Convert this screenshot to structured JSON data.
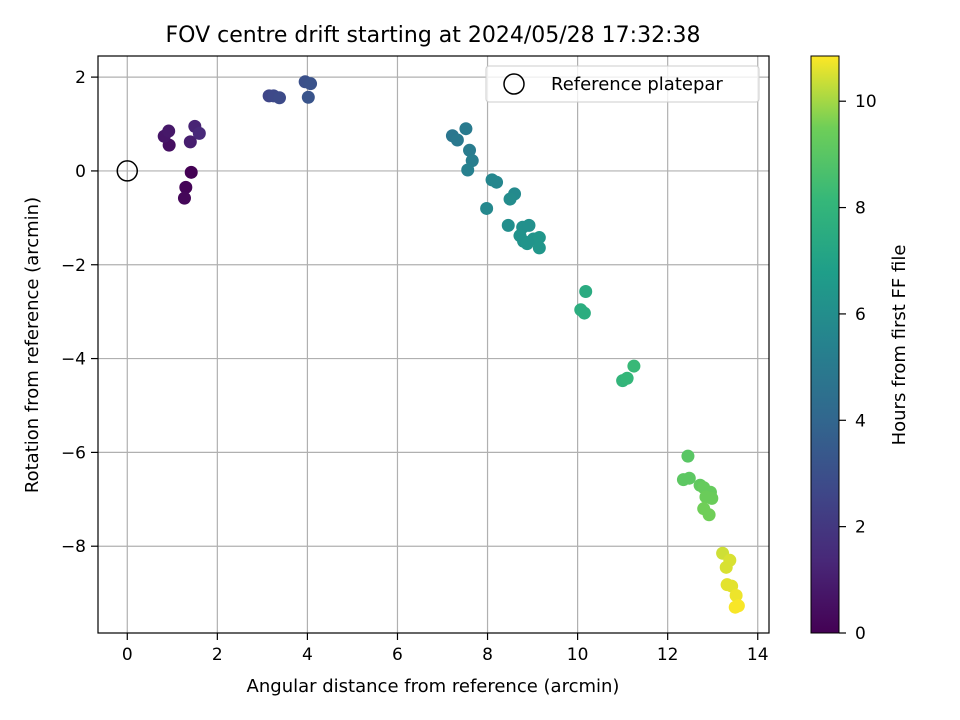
{
  "chart_data": {
    "type": "scatter",
    "title": "FOV centre drift starting at 2024/05/28 17:32:38",
    "xlabel": "Angular distance from reference (arcmin)",
    "ylabel": "Rotation from reference (arcmin)",
    "xlim": [
      -0.65,
      14.25
    ],
    "ylim": [
      -9.85,
      2.45
    ],
    "x_ticks": [
      0,
      2,
      4,
      6,
      8,
      10,
      12,
      14
    ],
    "y_ticks": [
      2,
      0,
      -2,
      -4,
      -6,
      -8
    ],
    "x_tick_labels": [
      "0",
      "2",
      "4",
      "6",
      "8",
      "10",
      "12",
      "14"
    ],
    "y_tick_labels": [
      "2",
      "0",
      "−2",
      "−4",
      "−6",
      "−8"
    ],
    "grid": true,
    "legend": {
      "placement": "top-right",
      "entries": [
        "Reference platepar"
      ]
    },
    "reference_point": {
      "x": 0,
      "y": 0,
      "label": "Reference platepar"
    },
    "colorbar": {
      "label": "Hours from first FF file",
      "range": [
        0,
        10.85
      ],
      "ticks": [
        0,
        2,
        4,
        6,
        8,
        10
      ],
      "tick_labels": [
        "0",
        "2",
        "4",
        "6",
        "8",
        "10"
      ],
      "colormap": "viridis"
    },
    "points": [
      {
        "x": 1.42,
        "y": -0.03,
        "c": 0.0
      },
      {
        "x": 1.3,
        "y": -0.35,
        "c": 0.1
      },
      {
        "x": 1.27,
        "y": -0.58,
        "c": 0.2
      },
      {
        "x": 0.93,
        "y": 0.55,
        "c": 0.5
      },
      {
        "x": 0.82,
        "y": 0.74,
        "c": 0.7
      },
      {
        "x": 0.92,
        "y": 0.85,
        "c": 0.8
      },
      {
        "x": 1.4,
        "y": 0.62,
        "c": 1.0
      },
      {
        "x": 1.5,
        "y": 0.95,
        "c": 1.2
      },
      {
        "x": 1.6,
        "y": 0.8,
        "c": 1.4
      },
      {
        "x": 3.15,
        "y": 1.6,
        "c": 2.6
      },
      {
        "x": 3.25,
        "y": 1.6,
        "c": 2.7
      },
      {
        "x": 3.38,
        "y": 1.56,
        "c": 2.8
      },
      {
        "x": 3.95,
        "y": 1.9,
        "c": 3.0
      },
      {
        "x": 4.07,
        "y": 1.86,
        "c": 3.1
      },
      {
        "x": 4.02,
        "y": 1.57,
        "c": 3.2
      },
      {
        "x": 7.22,
        "y": 0.75,
        "c": 4.8
      },
      {
        "x": 7.33,
        "y": 0.66,
        "c": 4.9
      },
      {
        "x": 7.52,
        "y": 0.9,
        "c": 5.0
      },
      {
        "x": 7.6,
        "y": 0.44,
        "c": 5.1
      },
      {
        "x": 7.66,
        "y": 0.22,
        "c": 5.2
      },
      {
        "x": 7.56,
        "y": 0.02,
        "c": 5.3
      },
      {
        "x": 8.1,
        "y": -0.19,
        "c": 5.6
      },
      {
        "x": 8.2,
        "y": -0.24,
        "c": 5.6
      },
      {
        "x": 7.98,
        "y": -0.8,
        "c": 5.7
      },
      {
        "x": 8.6,
        "y": -0.49,
        "c": 5.8
      },
      {
        "x": 8.5,
        "y": -0.6,
        "c": 5.9
      },
      {
        "x": 8.46,
        "y": -1.16,
        "c": 6.0
      },
      {
        "x": 8.78,
        "y": -1.2,
        "c": 6.1
      },
      {
        "x": 8.92,
        "y": -1.16,
        "c": 6.1
      },
      {
        "x": 8.72,
        "y": -1.38,
        "c": 6.2
      },
      {
        "x": 8.8,
        "y": -1.5,
        "c": 6.2
      },
      {
        "x": 8.88,
        "y": -1.55,
        "c": 6.3
      },
      {
        "x": 9.02,
        "y": -1.45,
        "c": 6.3
      },
      {
        "x": 9.15,
        "y": -1.42,
        "c": 6.4
      },
      {
        "x": 9.15,
        "y": -1.64,
        "c": 6.4
      },
      {
        "x": 10.18,
        "y": -2.57,
        "c": 7.5
      },
      {
        "x": 10.07,
        "y": -2.96,
        "c": 7.6
      },
      {
        "x": 10.15,
        "y": -3.03,
        "c": 7.6
      },
      {
        "x": 11.0,
        "y": -4.47,
        "c": 8.0
      },
      {
        "x": 11.1,
        "y": -4.42,
        "c": 8.1
      },
      {
        "x": 11.25,
        "y": -4.16,
        "c": 8.2
      },
      {
        "x": 12.45,
        "y": -6.08,
        "c": 9.0
      },
      {
        "x": 12.35,
        "y": -6.58,
        "c": 9.1
      },
      {
        "x": 12.48,
        "y": -6.55,
        "c": 9.1
      },
      {
        "x": 12.72,
        "y": -6.7,
        "c": 9.2
      },
      {
        "x": 12.8,
        "y": -6.75,
        "c": 9.3
      },
      {
        "x": 12.95,
        "y": -6.85,
        "c": 9.3
      },
      {
        "x": 12.85,
        "y": -6.95,
        "c": 9.4
      },
      {
        "x": 12.98,
        "y": -6.98,
        "c": 9.4
      },
      {
        "x": 12.8,
        "y": -7.2,
        "c": 9.5
      },
      {
        "x": 12.92,
        "y": -7.33,
        "c": 9.5
      },
      {
        "x": 13.22,
        "y": -8.15,
        "c": 10.4
      },
      {
        "x": 13.38,
        "y": -8.3,
        "c": 10.5
      },
      {
        "x": 13.3,
        "y": -8.45,
        "c": 10.5
      },
      {
        "x": 13.32,
        "y": -8.82,
        "c": 10.6
      },
      {
        "x": 13.42,
        "y": -8.85,
        "c": 10.6
      },
      {
        "x": 13.52,
        "y": -9.05,
        "c": 10.7
      },
      {
        "x": 13.5,
        "y": -9.3,
        "c": 10.8
      },
      {
        "x": 13.57,
        "y": -9.27,
        "c": 10.8
      }
    ]
  }
}
